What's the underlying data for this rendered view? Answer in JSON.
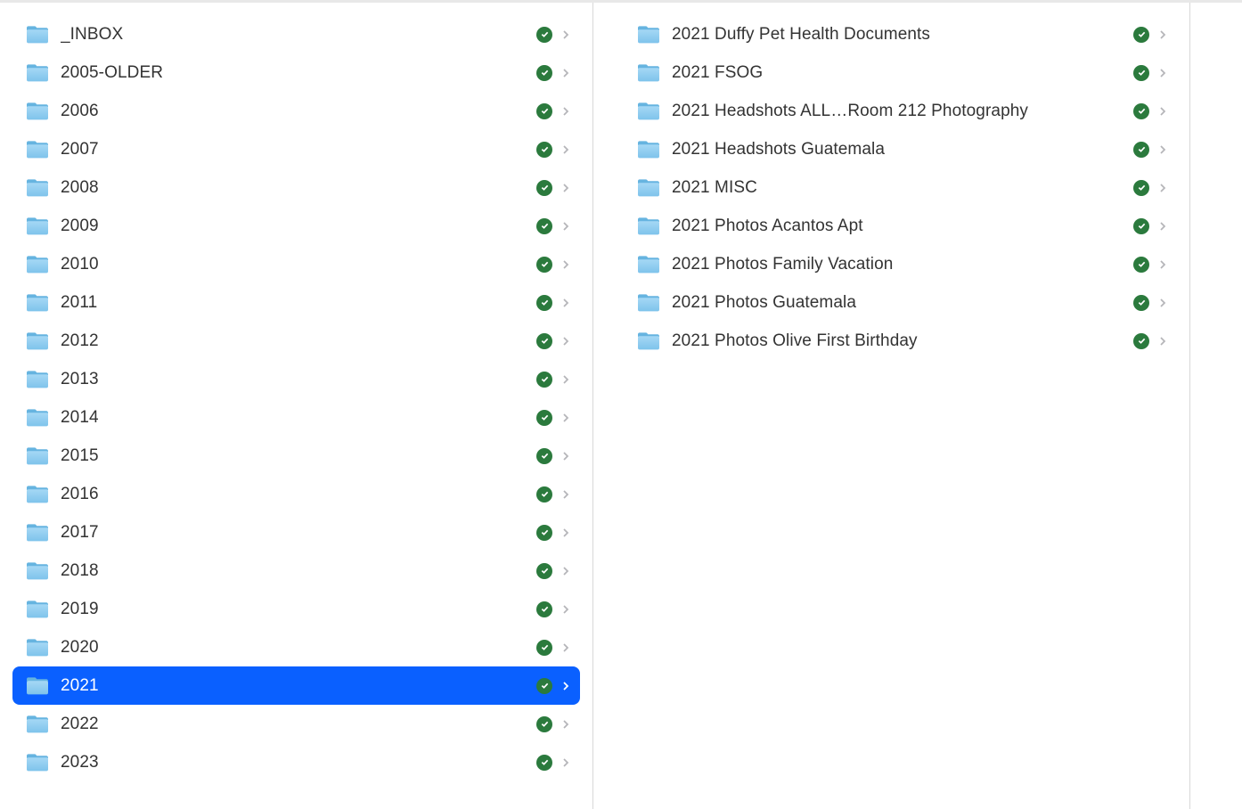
{
  "colors": {
    "selection": "#0a60ff",
    "folder_body_light": "#a5d8f5",
    "folder_body_dark": "#7ec3eb",
    "folder_tab": "#66b4e0",
    "status_green": "#2b7a3d",
    "chevron_gray": "#b5b5b9",
    "divider": "#d8d8d8",
    "top_bar": "#e8e8e8",
    "text": "#333333"
  },
  "left_column": {
    "items": [
      {
        "label": "_INBOX",
        "selected": false,
        "synced": true
      },
      {
        "label": "2005-OLDER",
        "selected": false,
        "synced": true
      },
      {
        "label": "2006",
        "selected": false,
        "synced": true
      },
      {
        "label": "2007",
        "selected": false,
        "synced": true
      },
      {
        "label": "2008",
        "selected": false,
        "synced": true
      },
      {
        "label": "2009",
        "selected": false,
        "synced": true
      },
      {
        "label": "2010",
        "selected": false,
        "synced": true
      },
      {
        "label": "2011",
        "selected": false,
        "synced": true
      },
      {
        "label": "2012",
        "selected": false,
        "synced": true
      },
      {
        "label": "2013",
        "selected": false,
        "synced": true
      },
      {
        "label": "2014",
        "selected": false,
        "synced": true
      },
      {
        "label": "2015",
        "selected": false,
        "synced": true
      },
      {
        "label": "2016",
        "selected": false,
        "synced": true
      },
      {
        "label": "2017",
        "selected": false,
        "synced": true
      },
      {
        "label": "2018",
        "selected": false,
        "synced": true
      },
      {
        "label": "2019",
        "selected": false,
        "synced": true
      },
      {
        "label": "2020",
        "selected": false,
        "synced": true
      },
      {
        "label": "2021",
        "selected": true,
        "synced": true
      },
      {
        "label": "2022",
        "selected": false,
        "synced": true
      },
      {
        "label": "2023",
        "selected": false,
        "synced": true
      }
    ]
  },
  "right_column": {
    "items": [
      {
        "label": "2021 Duffy Pet Health Documents",
        "selected": false,
        "synced": true
      },
      {
        "label": "2021 FSOG",
        "selected": false,
        "synced": true
      },
      {
        "label": "2021 Headshots ALL…Room 212 Photography",
        "selected": false,
        "synced": true
      },
      {
        "label": "2021 Headshots Guatemala",
        "selected": false,
        "synced": true
      },
      {
        "label": "2021 MISC",
        "selected": false,
        "synced": true
      },
      {
        "label": "2021 Photos Acantos Apt",
        "selected": false,
        "synced": true
      },
      {
        "label": "2021 Photos Family Vacation",
        "selected": false,
        "synced": true
      },
      {
        "label": "2021 Photos Guatemala",
        "selected": false,
        "synced": true
      },
      {
        "label": "2021 Photos Olive First Birthday",
        "selected": false,
        "synced": true
      }
    ]
  }
}
